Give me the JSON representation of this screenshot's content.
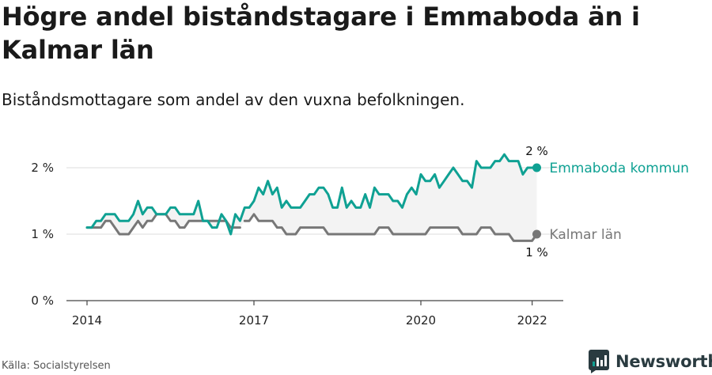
{
  "header": {
    "title": "Högre andel biståndstagare i Emmaboda än i Kalmar län",
    "subtitle": "Biståndsmottagare som andel av den vuxna befolkningen."
  },
  "footer": {
    "source": "Källa: Socialstyrelsen",
    "brand": "Newsworthy"
  },
  "chart_data": {
    "type": "line",
    "title": "Högre andel biståndstagare i Emmaboda än i Kalmar län",
    "subtitle": "Biståndsmottagare som andel av den vuxna befolkningen.",
    "xlabel": "",
    "ylabel": "",
    "x_ticks": [
      {
        "value": 2014,
        "label": "2014"
      },
      {
        "value": 2017,
        "label": "2017"
      },
      {
        "value": 2020,
        "label": "2020"
      },
      {
        "value": 2022,
        "label": "2022"
      }
    ],
    "y_ticks": [
      {
        "value": 0,
        "label": "0 %"
      },
      {
        "value": 1,
        "label": "1 %"
      },
      {
        "value": 2,
        "label": "2 %"
      }
    ],
    "xlim": [
      2013.6,
      2024.0
    ],
    "ylim": [
      0,
      2.4
    ],
    "grid": true,
    "series": [
      {
        "name": "Emmaboda kommun",
        "color": "#0fa193",
        "end_value_label": "2 %",
        "x_start": 2014.0,
        "x_step": 0.08333,
        "values": [
          1.1,
          1.1,
          1.2,
          1.2,
          1.3,
          1.3,
          1.3,
          1.2,
          1.2,
          1.2,
          1.3,
          1.5,
          1.3,
          1.4,
          1.4,
          1.3,
          1.3,
          1.3,
          1.4,
          1.4,
          1.3,
          1.3,
          1.3,
          1.3,
          1.5,
          1.2,
          1.2,
          1.1,
          1.1,
          1.3,
          1.2,
          1.0,
          1.3,
          1.2,
          1.4,
          1.4,
          1.5,
          1.7,
          1.6,
          1.8,
          1.6,
          1.7,
          1.4,
          1.5,
          1.4,
          1.4,
          1.4,
          1.5,
          1.6,
          1.6,
          1.7,
          1.7,
          1.6,
          1.4,
          1.4,
          1.7,
          1.4,
          1.5,
          1.4,
          1.4,
          1.6,
          1.4,
          1.7,
          1.6,
          1.6,
          1.6,
          1.5,
          1.5,
          1.4,
          1.6,
          1.7,
          1.6,
          1.9,
          1.8,
          1.8,
          1.9,
          1.7,
          1.8,
          1.9,
          2.0,
          1.9,
          1.8,
          1.8,
          1.7,
          2.1,
          2.0,
          2.0,
          2.0,
          2.1,
          2.1,
          2.2,
          2.1,
          2.1,
          2.1,
          1.9,
          2.0,
          2.0,
          2.0
        ]
      },
      {
        "name": "Kalmar län",
        "color": "#777777",
        "end_value_label": "1 %",
        "x_start": 2014.0,
        "x_step": 0.08333,
        "gaps_after_index": [
          33
        ],
        "values": [
          1.1,
          1.1,
          1.1,
          1.1,
          1.2,
          1.2,
          1.1,
          1.0,
          1.0,
          1.0,
          1.1,
          1.2,
          1.1,
          1.2,
          1.2,
          1.3,
          1.3,
          1.3,
          1.2,
          1.2,
          1.1,
          1.1,
          1.2,
          1.2,
          1.2,
          1.2,
          1.2,
          1.2,
          1.2,
          1.2,
          1.2,
          1.1,
          1.1,
          1.1,
          1.2,
          1.2,
          1.3,
          1.2,
          1.2,
          1.2,
          1.2,
          1.1,
          1.1,
          1.0,
          1.0,
          1.0,
          1.1,
          1.1,
          1.1,
          1.1,
          1.1,
          1.1,
          1.0,
          1.0,
          1.0,
          1.0,
          1.0,
          1.0,
          1.0,
          1.0,
          1.0,
          1.0,
          1.0,
          1.1,
          1.1,
          1.1,
          1.0,
          1.0,
          1.0,
          1.0,
          1.0,
          1.0,
          1.0,
          1.0,
          1.1,
          1.1,
          1.1,
          1.1,
          1.1,
          1.1,
          1.1,
          1.0,
          1.0,
          1.0,
          1.0,
          1.1,
          1.1,
          1.1,
          1.0,
          1.0,
          1.0,
          1.0,
          0.9,
          0.9,
          0.9,
          0.9,
          0.9,
          1.0
        ]
      }
    ]
  }
}
